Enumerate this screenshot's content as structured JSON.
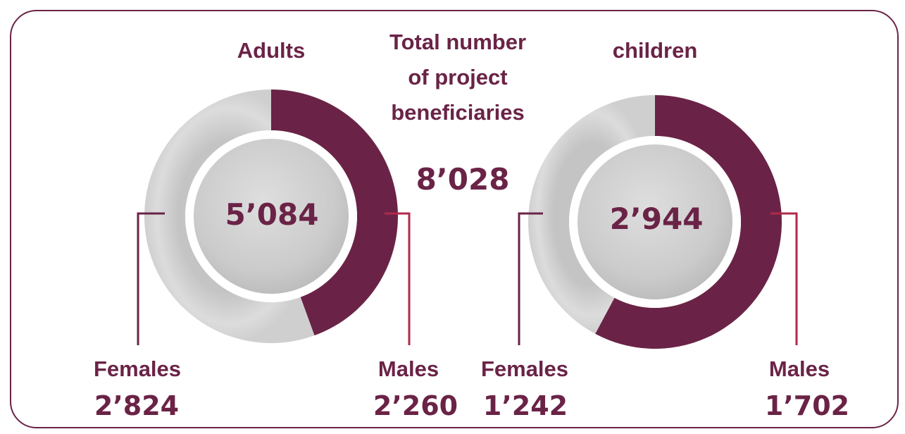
{
  "colors": {
    "primary": "#6a2346",
    "accent": "#b02a4a",
    "grey": "#d6d6d6",
    "grey_dark": "#c3c3c3",
    "centre": "#cfcfcf"
  },
  "total": {
    "title_lines": [
      "Total number",
      "of project",
      "beneficiaries"
    ],
    "value": "8٬028"
  },
  "chart_data": [
    {
      "type": "pie",
      "title": "Adults",
      "total_label": "5٬084",
      "total": 5084,
      "categories": [
        "Females",
        "Males"
      ],
      "values": [
        2824,
        2260
      ],
      "value_labels": [
        "2٬824",
        "2٬260"
      ]
    },
    {
      "type": "pie",
      "title": "children",
      "total_label": "2٬944",
      "total": 2944,
      "categories": [
        "Females",
        "Males"
      ],
      "values": [
        1242,
        1702
      ],
      "value_labels": [
        "1٬242",
        "1٬702"
      ]
    }
  ]
}
